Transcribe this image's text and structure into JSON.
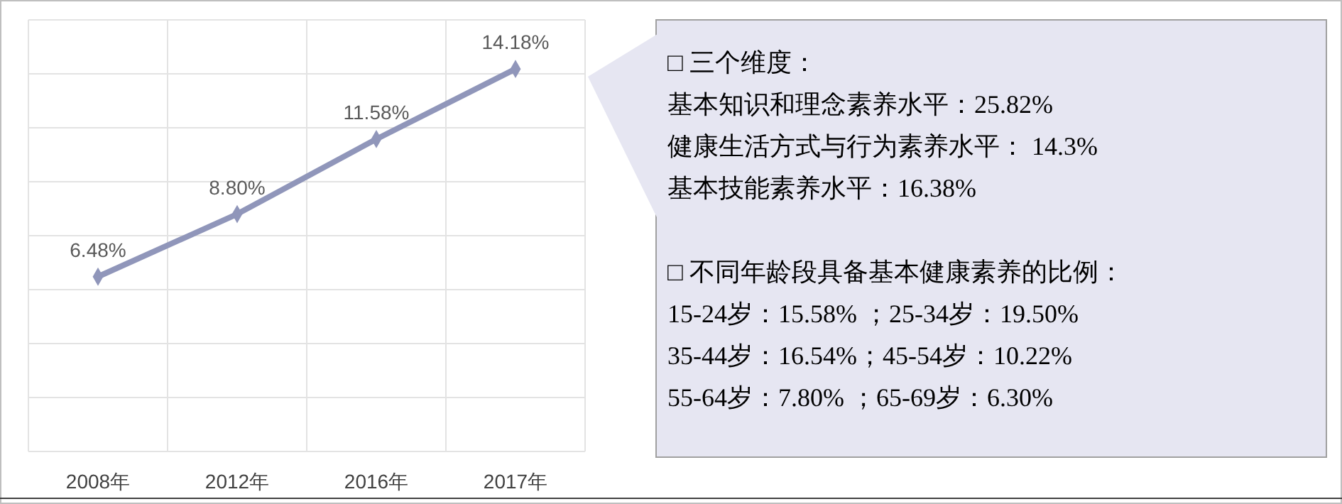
{
  "chart_data": {
    "type": "line",
    "categories": [
      "2008年",
      "2012年",
      "2016年",
      "2017年"
    ],
    "series": [
      {
        "color": "#9096ba",
        "values": [
          6.48,
          8.8,
          11.58,
          14.18
        ],
        "value_labels": [
          "6.48%",
          "8.80%",
          "11.58%",
          "14.18%"
        ]
      }
    ],
    "ylim": [
      0,
      16
    ],
    "yticks": [
      {
        "value": 0,
        "label": null
      },
      {
        "value": 2,
        "label": null
      },
      {
        "value": 4,
        "label": null
      },
      {
        "value": 6,
        "label": null
      },
      {
        "value": 8,
        "label": null
      },
      {
        "value": 10,
        "label": null
      },
      {
        "value": 12,
        "label": null
      },
      {
        "value": 14,
        "label": null
      },
      {
        "value": 16,
        "label": null
      }
    ],
    "tick_labels": "x",
    "grid": true,
    "marker": "diamond",
    "line_style": "solid",
    "annotations": [
      "□  三个维度：",
      "基本知识和理念素养水平：25.82%",
      "健康生活方式与行为素养水平： 14.3%",
      "基本技能素养水平：16.38%",
      "□  不同年龄段具备基本健康素养的比例：",
      "15-24岁：15.58% ；25-34岁：19.50%",
      "35-44岁：16.54%；45-54岁：10.22%",
      "55-64岁：7.80%  ；65-69岁：6.30%"
    ]
  }
}
